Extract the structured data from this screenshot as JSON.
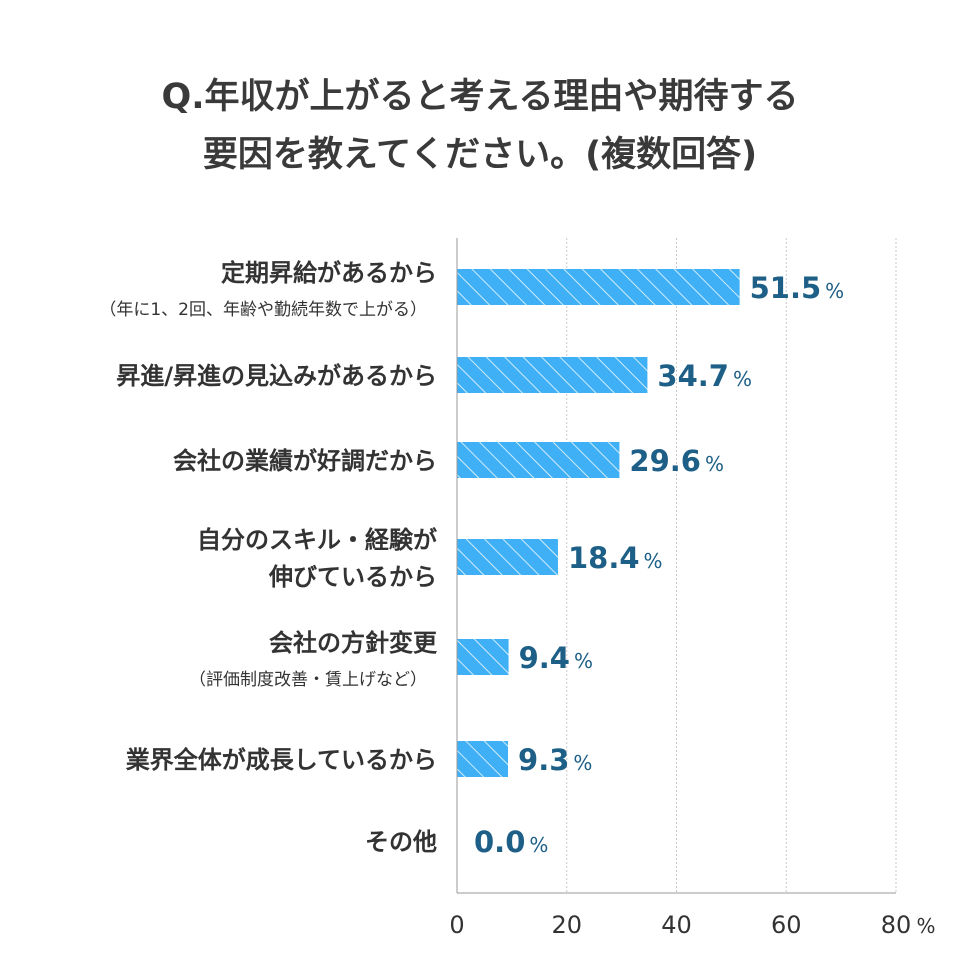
{
  "title_lines": [
    "Q.年収が上がると考える理由や期待する",
    "要因を教えてください。(複数回答)"
  ],
  "colors": {
    "bar": "#3fb0f5",
    "hatch": "#ffffff",
    "value_text": "#1d5f86",
    "grid": "#c8c8c8",
    "axis": "#999999"
  },
  "chart_data": {
    "type": "bar",
    "orientation": "horizontal",
    "title": "Q.年収が上がると考える理由や期待する要因を教えてください。(複数回答)",
    "categories": [
      {
        "main": [
          "定期昇給があるから"
        ],
        "sub": "（年に1、2回、年齢や勤続年数で上がる）"
      },
      {
        "main": [
          "昇進/昇進の見込みがあるから"
        ],
        "sub": ""
      },
      {
        "main": [
          "会社の業績が好調だから"
        ],
        "sub": ""
      },
      {
        "main": [
          "自分のスキル・経験が",
          "伸びているから"
        ],
        "sub": ""
      },
      {
        "main": [
          "会社の方針変更"
        ],
        "sub": "（評価制度改善・賃上げなど）"
      },
      {
        "main": [
          "業界全体が成長しているから"
        ],
        "sub": ""
      },
      {
        "main": [
          "その他"
        ],
        "sub": ""
      }
    ],
    "values": [
      51.5,
      34.7,
      29.6,
      18.4,
      9.4,
      9.3,
      0.0
    ],
    "value_labels": [
      "51.5",
      "34.7",
      "29.6",
      "18.4",
      "9.4",
      "9.3",
      "0.0"
    ],
    "value_unit": "%",
    "xlim": [
      0,
      80
    ],
    "xticks": [
      "0",
      "20",
      "40",
      "60",
      "80"
    ],
    "xtick_unit": "%",
    "grid": true,
    "bar_style": "hatched"
  }
}
